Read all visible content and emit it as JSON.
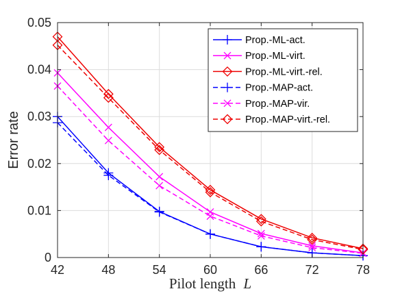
{
  "chart_data": {
    "type": "line",
    "xlabel_text": "Pilot length",
    "xlabel_var": "L",
    "ylabel": "Error rate",
    "x": [
      42,
      48,
      54,
      60,
      66,
      72,
      78
    ],
    "x_ticks": [
      "42",
      "48",
      "54",
      "60",
      "66",
      "72",
      "78"
    ],
    "y_ticks": [
      "0",
      "0.01",
      "0.02",
      "0.03",
      "0.04",
      "0.05"
    ],
    "xlim": [
      42,
      78
    ],
    "ylim": [
      0,
      0.05
    ],
    "grid": true,
    "legend_position": "top-right",
    "series": [
      {
        "name": "Prop.-ML-act.",
        "color": "#0000ff",
        "dash": "solid",
        "marker": "plus",
        "values": [
          0.03,
          0.018,
          0.0098,
          0.005,
          0.0023,
          0.001,
          0.0004
        ]
      },
      {
        "name": "Prop.-ML-virt.",
        "color": "#ff00ff",
        "dash": "solid",
        "marker": "x",
        "values": [
          0.0393,
          0.0277,
          0.0172,
          0.0097,
          0.0051,
          0.0025,
          0.001
        ]
      },
      {
        "name": "Prop.-ML-virt.-rel.",
        "color": "#ee0000",
        "dash": "solid",
        "marker": "diamond",
        "values": [
          0.047,
          0.0348,
          0.0235,
          0.0144,
          0.0082,
          0.0042,
          0.0019
        ]
      },
      {
        "name": "Prop.-MAP-act.",
        "color": "#0000ff",
        "dash": "dashed",
        "marker": "plus",
        "values": [
          0.0287,
          0.0175,
          0.0097,
          0.005,
          0.0023,
          0.001,
          0.0004
        ]
      },
      {
        "name": "Prop.-MAP-vir.",
        "color": "#ff00ff",
        "dash": "dashed",
        "marker": "x",
        "values": [
          0.0365,
          0.0249,
          0.0153,
          0.0088,
          0.0046,
          0.0021,
          0.0009
        ]
      },
      {
        "name": "Prop.-MAP-virt.-rel.",
        "color": "#ee0000",
        "dash": "dashed",
        "marker": "diamond",
        "values": [
          0.0452,
          0.034,
          0.0229,
          0.0139,
          0.0077,
          0.0038,
          0.0017
        ]
      }
    ]
  }
}
